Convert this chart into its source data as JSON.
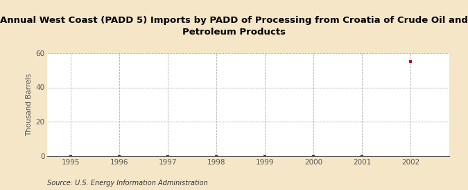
{
  "title": "Annual West Coast (PADD 5) Imports by PADD of Processing from Croatia of Crude Oil and\nPetroleum Products",
  "ylabel": "Thousand Barrels",
  "source": "Source: U.S. Energy Information Administration",
  "background_color": "#f5e6c8",
  "plot_bg_color": "#ffffff",
  "x_values": [
    1995,
    1996,
    1997,
    1998,
    1999,
    2000,
    2001,
    2002
  ],
  "y_values": [
    0,
    0,
    0,
    0,
    0,
    0,
    0,
    55
  ],
  "xlim": [
    1994.5,
    2002.8
  ],
  "ylim": [
    0,
    60
  ],
  "yticks": [
    0,
    20,
    40,
    60
  ],
  "xticks": [
    1995,
    1996,
    1997,
    1998,
    1999,
    2000,
    2001,
    2002
  ],
  "marker_color": "#cc0000",
  "marker_size": 3.5,
  "grid_color": "#b0b0b0",
  "grid_linestyle": "--",
  "title_fontsize": 9.5,
  "ylabel_fontsize": 7.5,
  "tick_fontsize": 7.5,
  "source_fontsize": 7,
  "title_color": "#000000",
  "tick_color": "#555555"
}
